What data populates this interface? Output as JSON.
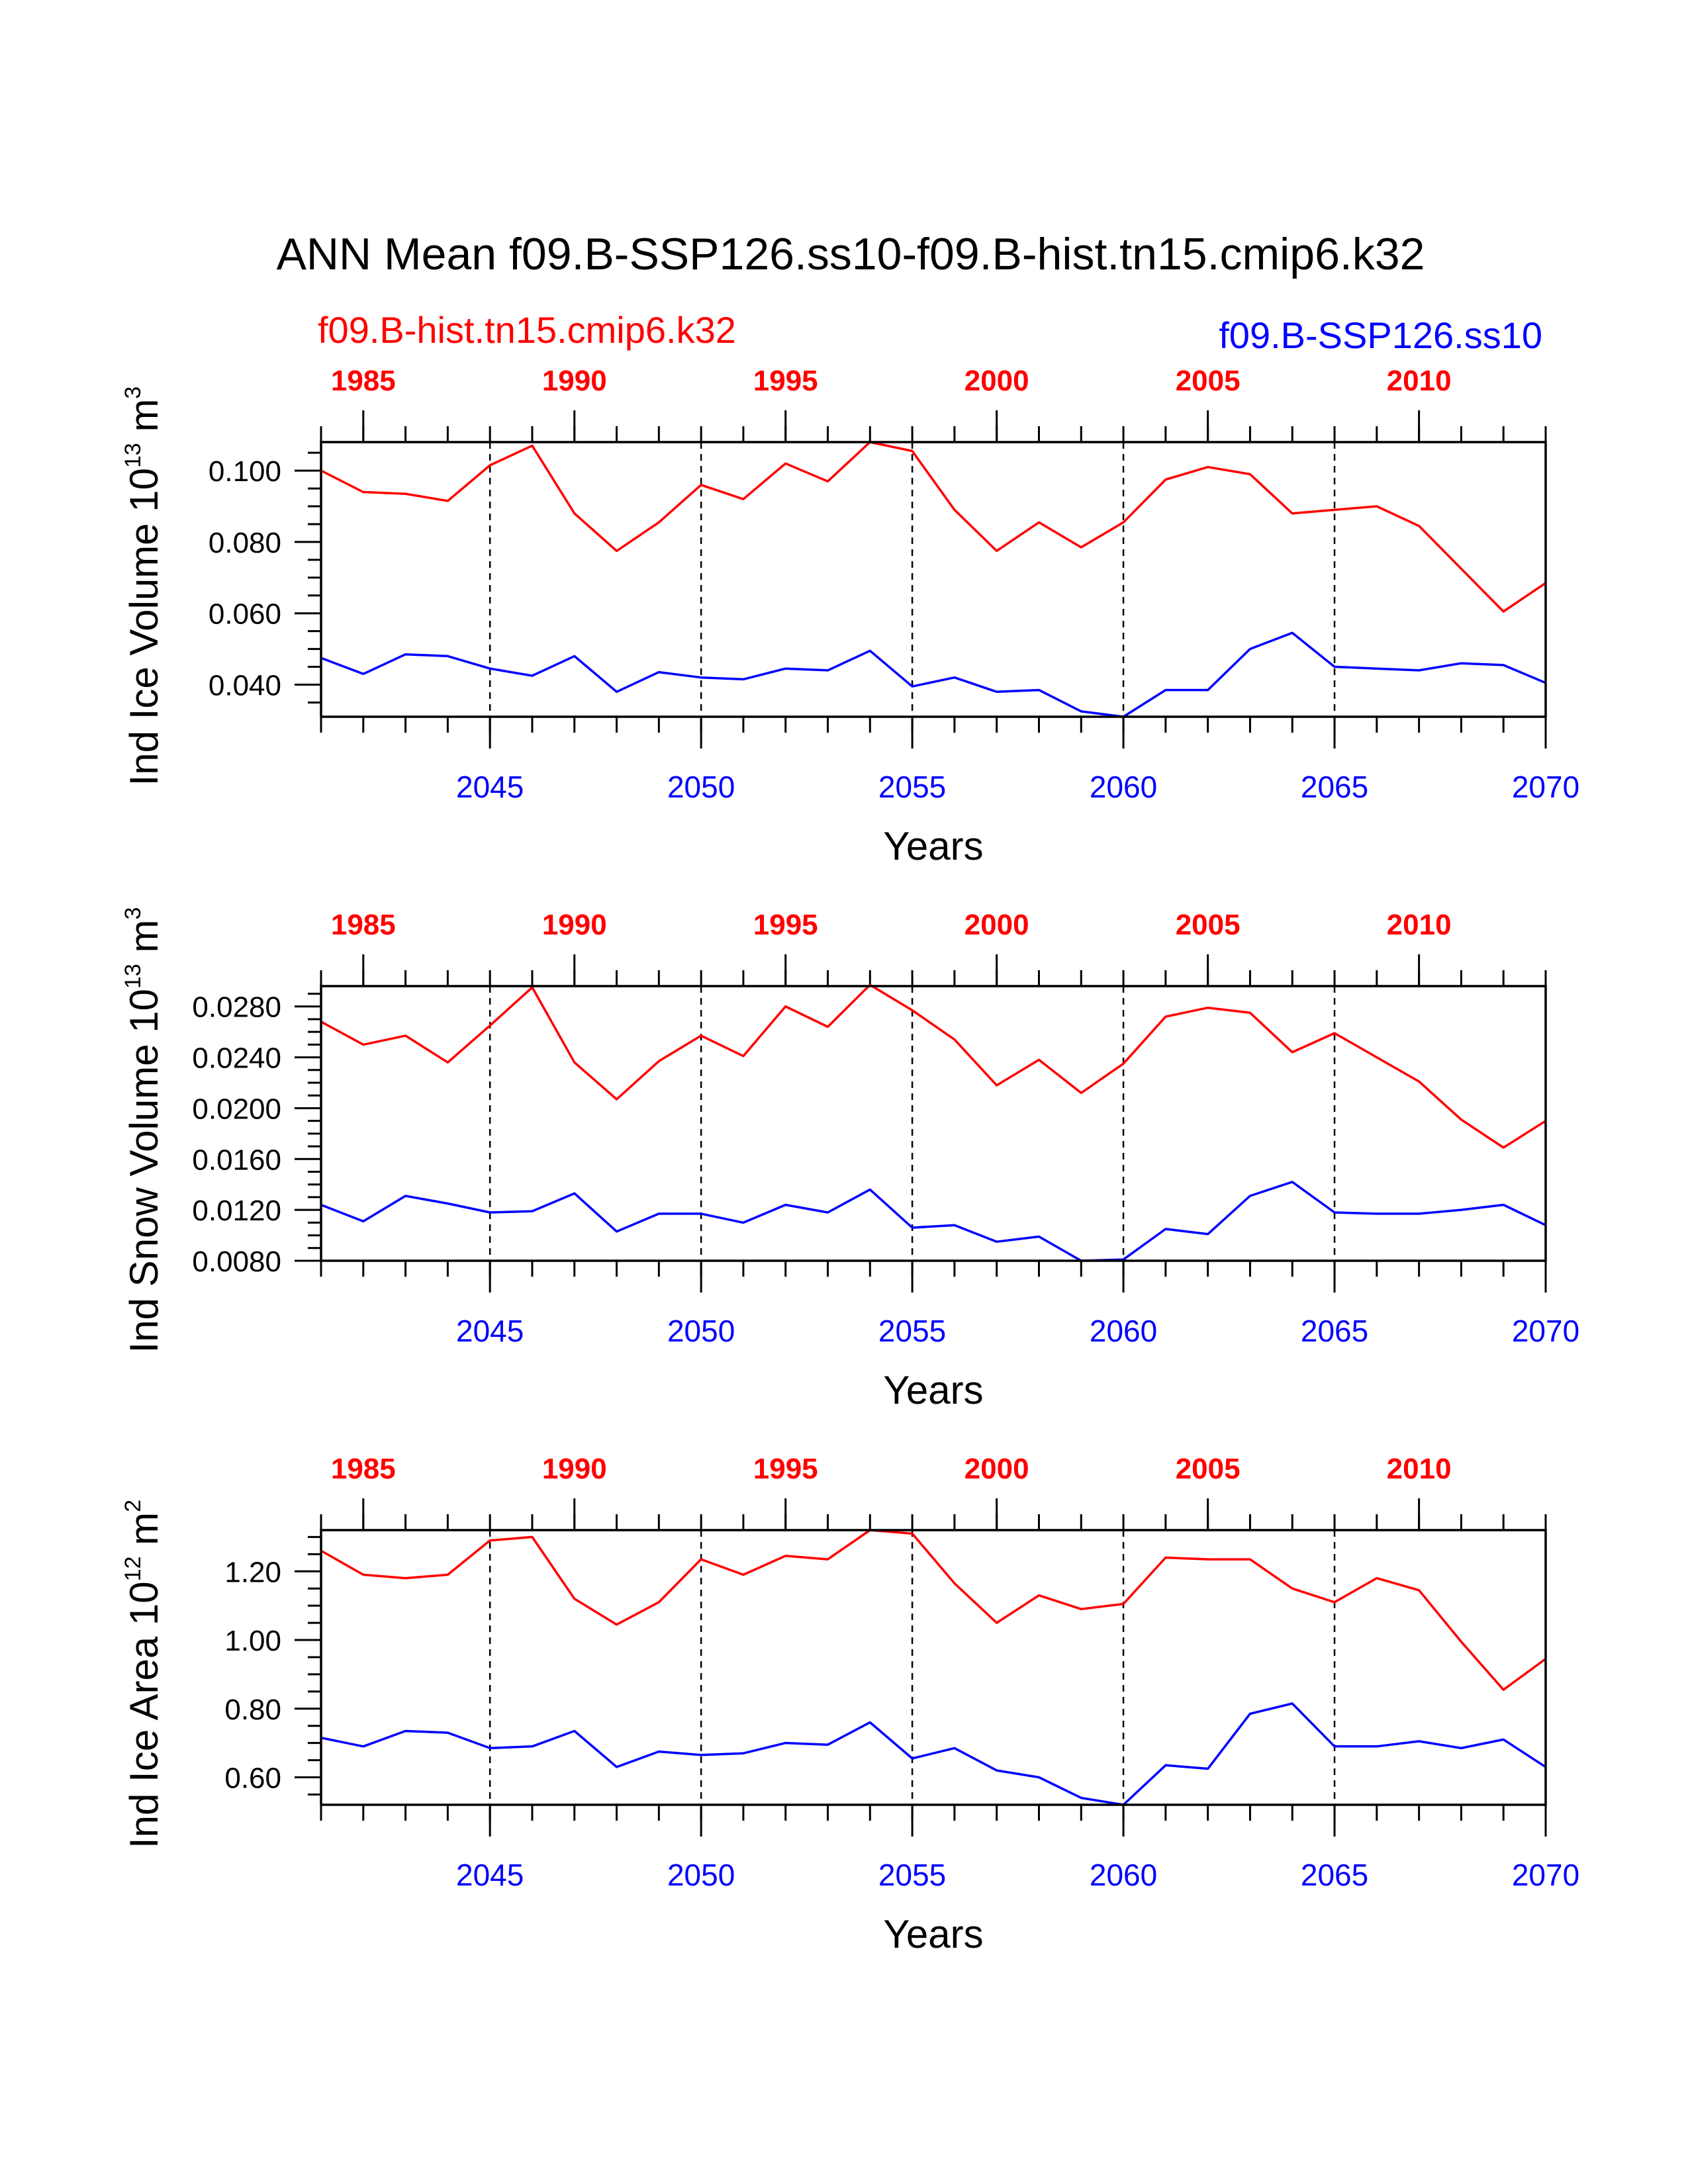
{
  "title": "ANN Mean f09.B-SSP126.ss10-f09.B-hist.tn15.cmip6.k32",
  "case_left": "f09.B-hist.tn15.cmip6.k32",
  "case_right": "f09.B-SSP126.ss10",
  "colors": {
    "hist": "#ff0000",
    "ssp": "#0000ff",
    "axis": "#000000"
  },
  "chart_data": [
    {
      "type": "line",
      "ylabel": {
        "prefix": "Ind Ice Volume 10",
        "exp": "13",
        "unit": " m",
        "unit_exp": "3"
      },
      "xlabel": "Years",
      "ylim": [
        0.031,
        0.108
      ],
      "yticks": [
        0.04,
        0.06,
        0.08,
        0.1
      ],
      "ytick_labels": [
        "0.040",
        "0.060",
        "0.080",
        "0.100"
      ],
      "yminor": [
        0.035,
        0.045,
        0.05,
        0.055,
        0.065,
        0.07,
        0.075,
        0.085,
        0.09,
        0.095,
        0.105
      ],
      "x_top": {
        "range": [
          1984,
          2013
        ],
        "ticks": [
          1985,
          1990,
          1995,
          2000,
          2005,
          2010
        ],
        "labels": [
          "1985",
          "1990",
          "1995",
          "2000",
          "2005",
          "2010"
        ]
      },
      "x_bottom": {
        "range": [
          2041,
          2070
        ],
        "ticks": [
          2045,
          2050,
          2055,
          2060,
          2065,
          2070
        ],
        "labels": [
          "2045",
          "2050",
          "2055",
          "2060",
          "2065",
          "2070"
        ]
      },
      "vlines": [
        2045,
        2050,
        2055,
        2060,
        2065
      ],
      "series": [
        {
          "name": "f09.B-hist.tn15.cmip6.k32",
          "color": "#ff0000",
          "values": [
            0.1,
            0.094,
            0.0935,
            0.0915,
            0.1015,
            0.107,
            0.088,
            0.0775,
            0.0855,
            0.096,
            0.092,
            0.102,
            0.097,
            0.108,
            0.1055,
            0.089,
            0.0775,
            0.0855,
            0.0785,
            0.0855,
            0.0975,
            0.101,
            0.099,
            0.088,
            0.089,
            0.09,
            0.0845,
            0.0725,
            0.0605,
            0.0685
          ]
        },
        {
          "name": "f09.B-SSP126.ss10",
          "color": "#0000ff",
          "values": [
            0.0475,
            0.043,
            0.0485,
            0.048,
            0.0445,
            0.0425,
            0.048,
            0.038,
            0.0435,
            0.042,
            0.0415,
            0.0445,
            0.044,
            0.0495,
            0.0395,
            0.042,
            0.038,
            0.0385,
            0.0325,
            0.031,
            0.0385,
            0.0385,
            0.05,
            0.0545,
            0.045,
            0.0445,
            0.044,
            0.046,
            0.0455,
            0.0405
          ]
        }
      ]
    },
    {
      "type": "line",
      "ylabel": {
        "prefix": "Ind Snow Volume 10",
        "exp": "13",
        "unit": " m",
        "unit_exp": "3"
      },
      "xlabel": "Years",
      "ylim": [
        0.008,
        0.0296
      ],
      "yticks": [
        0.008,
        0.012,
        0.016,
        0.02,
        0.024,
        0.028
      ],
      "ytick_labels": [
        "0.0080",
        "0.0120",
        "0.0160",
        "0.0200",
        "0.0240",
        "0.0280"
      ],
      "yminor": [
        0.009,
        0.01,
        0.011,
        0.013,
        0.014,
        0.015,
        0.017,
        0.018,
        0.019,
        0.021,
        0.022,
        0.023,
        0.025,
        0.026,
        0.027,
        0.029
      ],
      "x_top": {
        "range": [
          1984,
          2013
        ],
        "ticks": [
          1985,
          1990,
          1995,
          2000,
          2005,
          2010
        ],
        "labels": [
          "1985",
          "1990",
          "1995",
          "2000",
          "2005",
          "2010"
        ]
      },
      "x_bottom": {
        "range": [
          2041,
          2070
        ],
        "ticks": [
          2045,
          2050,
          2055,
          2060,
          2065,
          2070
        ],
        "labels": [
          "2045",
          "2050",
          "2055",
          "2060",
          "2065",
          "2070"
        ]
      },
      "vlines": [
        2045,
        2050,
        2055,
        2060,
        2065
      ],
      "series": [
        {
          "name": "f09.B-hist.tn15.cmip6.k32",
          "color": "#ff0000",
          "values": [
            0.0268,
            0.025,
            0.0257,
            0.0236,
            0.0265,
            0.0295,
            0.0236,
            0.0207,
            0.0237,
            0.0257,
            0.0241,
            0.028,
            0.0264,
            0.0297,
            0.0277,
            0.0254,
            0.0218,
            0.0238,
            0.0212,
            0.0235,
            0.0272,
            0.0279,
            0.0275,
            0.0244,
            0.0259,
            0.024,
            0.0221,
            0.0191,
            0.0169,
            0.019
          ]
        },
        {
          "name": "f09.B-SSP126.ss10",
          "color": "#0000ff",
          "values": [
            0.0124,
            0.0111,
            0.0131,
            0.0125,
            0.0118,
            0.0119,
            0.0133,
            0.0103,
            0.0117,
            0.0117,
            0.011,
            0.0124,
            0.0118,
            0.0136,
            0.0106,
            0.0108,
            0.0095,
            0.0099,
            0.008,
            0.0081,
            0.0105,
            0.0101,
            0.0131,
            0.0142,
            0.0118,
            0.0117,
            0.0117,
            0.012,
            0.0124,
            0.0108
          ]
        }
      ]
    },
    {
      "type": "line",
      "ylabel": {
        "prefix": "Ind Ice Area 10",
        "exp": "12",
        "unit": " m",
        "unit_exp": "2"
      },
      "xlabel": "Years",
      "ylim": [
        0.52,
        1.32
      ],
      "yticks": [
        0.6,
        0.8,
        1.0,
        1.2
      ],
      "ytick_labels": [
        "0.60",
        "0.80",
        "1.00",
        "1.20"
      ],
      "yminor": [
        0.55,
        0.65,
        0.7,
        0.75,
        0.85,
        0.9,
        0.95,
        1.05,
        1.1,
        1.15,
        1.25,
        1.3
      ],
      "x_top": {
        "range": [
          1984,
          2013
        ],
        "ticks": [
          1985,
          1990,
          1995,
          2000,
          2005,
          2010
        ],
        "labels": [
          "1985",
          "1990",
          "1995",
          "2000",
          "2005",
          "2010"
        ]
      },
      "x_bottom": {
        "range": [
          2041,
          2070
        ],
        "ticks": [
          2045,
          2050,
          2055,
          2060,
          2065,
          2070
        ],
        "labels": [
          "2045",
          "2050",
          "2055",
          "2060",
          "2065",
          "2070"
        ]
      },
      "vlines": [
        2045,
        2050,
        2055,
        2060,
        2065
      ],
      "series": [
        {
          "name": "f09.B-hist.tn15.cmip6.k32",
          "color": "#ff0000",
          "values": [
            1.26,
            1.19,
            1.18,
            1.19,
            1.29,
            1.3,
            1.12,
            1.045,
            1.11,
            1.235,
            1.19,
            1.245,
            1.235,
            1.32,
            1.31,
            1.165,
            1.05,
            1.13,
            1.09,
            1.105,
            1.24,
            1.235,
            1.235,
            1.15,
            1.11,
            1.18,
            1.145,
            0.995,
            0.855,
            0.945
          ]
        },
        {
          "name": "f09.B-SSP126.ss10",
          "color": "#0000ff",
          "values": [
            0.715,
            0.69,
            0.735,
            0.73,
            0.685,
            0.69,
            0.735,
            0.63,
            0.675,
            0.665,
            0.67,
            0.7,
            0.695,
            0.76,
            0.655,
            0.685,
            0.62,
            0.6,
            0.54,
            0.52,
            0.635,
            0.625,
            0.785,
            0.815,
            0.69,
            0.69,
            0.705,
            0.685,
            0.71,
            0.63
          ]
        }
      ]
    }
  ]
}
